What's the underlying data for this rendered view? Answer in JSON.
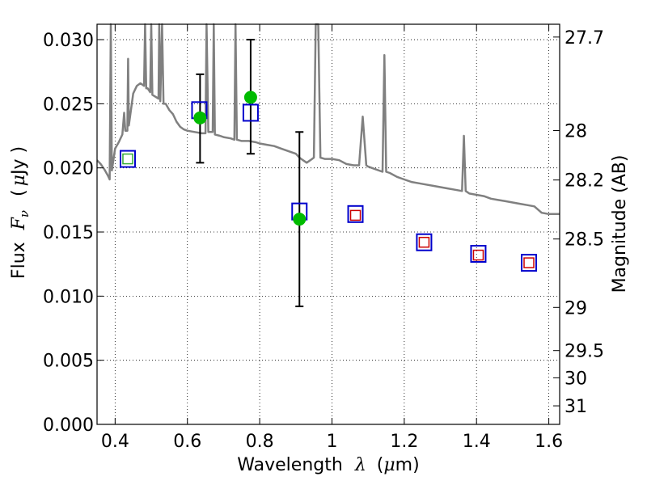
{
  "chart_data": {
    "type": "scatter",
    "xlabel_prefix": "Wavelength",
    "xlabel_symbol": "λ",
    "xlabel_unit_open": "(",
    "xlabel_unit_mu": "μ",
    "xlabel_unit_rest": "m)",
    "ylabel_prefix": "Flux",
    "ylabel_symbol": "F",
    "ylabel_sub": "ν",
    "ylabel_unit_open": "(",
    "ylabel_unit_mu": "μ",
    "ylabel_unit_rest": "Jy )",
    "y2label": "Magnitude (AB)",
    "xlim": [
      0.35,
      1.63
    ],
    "ylim": [
      0.0,
      0.0312
    ],
    "grid": true,
    "x_ticks": [
      {
        "value": 0.4,
        "label": "0.4"
      },
      {
        "value": 0.6,
        "label": "0.6"
      },
      {
        "value": 0.8,
        "label": "0.8"
      },
      {
        "value": 1.0,
        "label": "1"
      },
      {
        "value": 1.2,
        "label": "1.2"
      },
      {
        "value": 1.4,
        "label": "1.4"
      },
      {
        "value": 1.6,
        "label": "1.6"
      }
    ],
    "y_ticks": [
      {
        "value": 0.0,
        "label": "0.000"
      },
      {
        "value": 0.005,
        "label": "0.005"
      },
      {
        "value": 0.01,
        "label": "0.010"
      },
      {
        "value": 0.015,
        "label": "0.015"
      },
      {
        "value": 0.02,
        "label": "0.020"
      },
      {
        "value": 0.025,
        "label": "0.025"
      },
      {
        "value": 0.03,
        "label": "0.030"
      }
    ],
    "y2_ticks": [
      {
        "mag": 27.7,
        "label": "27.7"
      },
      {
        "mag": 28.0,
        "label": "28"
      },
      {
        "mag": 28.2,
        "label": "28.2"
      },
      {
        "mag": 28.5,
        "label": "28.5"
      },
      {
        "mag": 29.0,
        "label": "29"
      },
      {
        "mag": 29.5,
        "label": "29.5"
      },
      {
        "mag": 30.0,
        "label": "30"
      },
      {
        "mag": 31.0,
        "label": "31"
      }
    ],
    "model_spectrum": {
      "color": "#808080",
      "points": [
        [
          0.35,
          0.0206
        ],
        [
          0.36,
          0.0203
        ],
        [
          0.37,
          0.0199
        ],
        [
          0.38,
          0.0194
        ],
        [
          0.385,
          0.0191
        ],
        [
          0.388,
          0.0312
        ],
        [
          0.391,
          0.0198
        ],
        [
          0.4,
          0.0215
        ],
        [
          0.41,
          0.022
        ],
        [
          0.42,
          0.0226
        ],
        [
          0.425,
          0.0243
        ],
        [
          0.428,
          0.0229
        ],
        [
          0.434,
          0.0229
        ],
        [
          0.436,
          0.0285
        ],
        [
          0.438,
          0.0233
        ],
        [
          0.45,
          0.0258
        ],
        [
          0.46,
          0.0264
        ],
        [
          0.47,
          0.0266
        ],
        [
          0.48,
          0.0264
        ],
        [
          0.483,
          0.0312
        ],
        [
          0.486,
          0.0262
        ],
        [
          0.49,
          0.0262
        ],
        [
          0.497,
          0.0259
        ],
        [
          0.5,
          0.0312
        ],
        [
          0.503,
          0.0257
        ],
        [
          0.52,
          0.0254
        ],
        [
          0.522,
          0.0312
        ],
        [
          0.525,
          0.0252
        ],
        [
          0.53,
          0.0312
        ],
        [
          0.534,
          0.025
        ],
        [
          0.54,
          0.025
        ],
        [
          0.55,
          0.0245
        ],
        [
          0.56,
          0.0242
        ],
        [
          0.57,
          0.0236
        ],
        [
          0.58,
          0.0232
        ],
        [
          0.59,
          0.023
        ],
        [
          0.6,
          0.0229
        ],
        [
          0.62,
          0.0228
        ],
        [
          0.64,
          0.0227
        ],
        [
          0.65,
          0.0227
        ],
        [
          0.653,
          0.0312
        ],
        [
          0.658,
          0.0228
        ],
        [
          0.67,
          0.0228
        ],
        [
          0.673,
          0.0312
        ],
        [
          0.676,
          0.0226
        ],
        [
          0.69,
          0.0225
        ],
        [
          0.7,
          0.0224
        ],
        [
          0.72,
          0.0223
        ],
        [
          0.73,
          0.0222
        ],
        [
          0.733,
          0.0312
        ],
        [
          0.737,
          0.0222
        ],
        [
          0.75,
          0.0221
        ],
        [
          0.77,
          0.0221
        ],
        [
          0.79,
          0.022
        ],
        [
          0.8,
          0.0219
        ],
        [
          0.82,
          0.0218
        ],
        [
          0.84,
          0.0217
        ],
        [
          0.86,
          0.0215
        ],
        [
          0.88,
          0.0213
        ],
        [
          0.9,
          0.0211
        ],
        [
          0.91,
          0.0208
        ],
        [
          0.92,
          0.0206
        ],
        [
          0.93,
          0.0204
        ],
        [
          0.94,
          0.0206
        ],
        [
          0.95,
          0.0208
        ],
        [
          0.955,
          0.0312
        ],
        [
          0.962,
          0.0312
        ],
        [
          0.968,
          0.0208
        ],
        [
          0.98,
          0.0207
        ],
        [
          1.0,
          0.0207
        ],
        [
          1.02,
          0.0206
        ],
        [
          1.04,
          0.0203
        ],
        [
          1.06,
          0.0202
        ],
        [
          1.075,
          0.0202
        ],
        [
          1.085,
          0.024
        ],
        [
          1.095,
          0.0202
        ],
        [
          1.1,
          0.0201
        ],
        [
          1.12,
          0.0199
        ],
        [
          1.14,
          0.0197
        ],
        [
          1.145,
          0.0288
        ],
        [
          1.15,
          0.0197
        ],
        [
          1.16,
          0.0196
        ],
        [
          1.18,
          0.0193
        ],
        [
          1.2,
          0.0191
        ],
        [
          1.22,
          0.0189
        ],
        [
          1.24,
          0.0188
        ],
        [
          1.26,
          0.0187
        ],
        [
          1.28,
          0.0186
        ],
        [
          1.3,
          0.0185
        ],
        [
          1.32,
          0.0184
        ],
        [
          1.34,
          0.0183
        ],
        [
          1.36,
          0.0182
        ],
        [
          1.365,
          0.0225
        ],
        [
          1.37,
          0.0182
        ],
        [
          1.38,
          0.018
        ],
        [
          1.4,
          0.0179
        ],
        [
          1.42,
          0.0178
        ],
        [
          1.44,
          0.0176
        ],
        [
          1.46,
          0.0175
        ],
        [
          1.48,
          0.0174
        ],
        [
          1.5,
          0.0173
        ],
        [
          1.52,
          0.0172
        ],
        [
          1.54,
          0.0171
        ],
        [
          1.56,
          0.017
        ],
        [
          1.58,
          0.0165
        ],
        [
          1.6,
          0.0164
        ],
        [
          1.63,
          0.0164
        ]
      ]
    },
    "model_photometry": {
      "color": "#0000cc",
      "points": [
        {
          "x": 0.435,
          "y": 0.0207
        },
        {
          "x": 0.633,
          "y": 0.0245
        },
        {
          "x": 0.775,
          "y": 0.0243
        },
        {
          "x": 0.91,
          "y": 0.0166
        },
        {
          "x": 1.065,
          "y": 0.0164
        },
        {
          "x": 1.255,
          "y": 0.0142
        },
        {
          "x": 1.405,
          "y": 0.0133
        },
        {
          "x": 1.545,
          "y": 0.0126
        }
      ]
    },
    "upper_limits": {
      "color_green": "#33aa33",
      "color_red": "#cc0000",
      "points": [
        {
          "x": 0.435,
          "y": 0.0207,
          "color": "green"
        },
        {
          "x": 1.065,
          "y": 0.0163,
          "color": "red"
        },
        {
          "x": 1.255,
          "y": 0.0142,
          "color": "red"
        },
        {
          "x": 1.405,
          "y": 0.0132,
          "color": "red"
        },
        {
          "x": 1.545,
          "y": 0.0126,
          "color": "red"
        }
      ]
    },
    "observed": {
      "color": "#00bb00",
      "points": [
        {
          "x": 0.635,
          "y": 0.0239,
          "ylo": 0.0204,
          "yhi": 0.0273
        },
        {
          "x": 0.775,
          "y": 0.0255,
          "ylo": 0.0211,
          "yhi": 0.03
        },
        {
          "x": 0.91,
          "y": 0.016,
          "ylo": 0.0092,
          "yhi": 0.0228
        }
      ]
    }
  }
}
